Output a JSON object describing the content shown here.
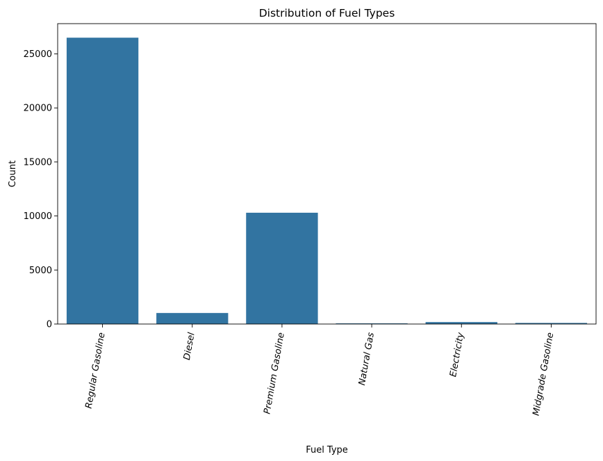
{
  "chart_data": {
    "type": "bar",
    "title": "Distribution of Fuel Types",
    "xlabel": "Fuel Type",
    "ylabel": "Count",
    "categories": [
      "Regular Gasoline",
      "Diesel",
      "Premium Gasoline",
      "Natural Gas",
      "Electricity",
      "Midgrade Gasoline"
    ],
    "values": [
      26500,
      1020,
      10300,
      60,
      180,
      100
    ],
    "ylim": [
      0,
      27800
    ],
    "yticks": [
      0,
      5000,
      10000,
      15000,
      20000,
      25000
    ],
    "grid": false,
    "bar_color": "#3274a1",
    "x_tick_rotation": 80
  }
}
